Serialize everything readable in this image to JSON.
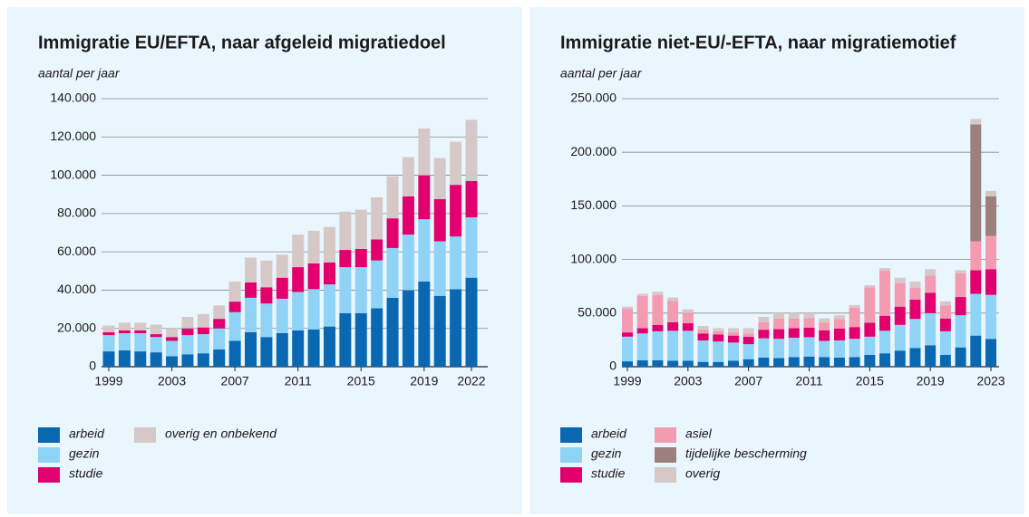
{
  "chart_data": [
    {
      "type": "bar",
      "stacked": true,
      "title": "Immigratie EU/EFTA, naar afgeleid migratiedoel",
      "y_label": "aantal per jaar",
      "x": [
        1999,
        2000,
        2001,
        2002,
        2003,
        2004,
        2005,
        2006,
        2007,
        2008,
        2009,
        2010,
        2011,
        2012,
        2013,
        2014,
        2015,
        2016,
        2017,
        2018,
        2019,
        2020,
        2021,
        2022
      ],
      "xticks": [
        1999,
        2003,
        2007,
        2011,
        2015,
        2019,
        2022
      ],
      "ylim": [
        0,
        140000
      ],
      "yticks": [
        0,
        {
          "value": 20000,
          "label": "20.000"
        },
        {
          "value": 40000,
          "label": "40.000"
        },
        {
          "value": 60000,
          "label": "60.000"
        },
        {
          "value": 80000,
          "label": "80.000"
        },
        {
          "value": 100000,
          "label": "100.000"
        },
        {
          "value": 120000,
          "label": "120.000"
        },
        {
          "value": 140000,
          "label": "140.000"
        }
      ],
      "grid": true,
      "series": [
        {
          "name": "arbeid",
          "color": "#0a68b2",
          "values": [
            8000,
            8500,
            8000,
            7500,
            5500,
            6500,
            7000,
            9000,
            13500,
            18000,
            15500,
            17500,
            19000,
            19500,
            21000,
            28000,
            28000,
            30500,
            36000,
            40000,
            44500,
            37000,
            40500,
            46500
          ]
        },
        {
          "name": "gezin",
          "color": "#8fd3f7",
          "values": [
            8500,
            9000,
            9500,
            8000,
            8000,
            10000,
            10000,
            11000,
            15000,
            18000,
            17500,
            18000,
            20000,
            21000,
            22000,
            24000,
            24000,
            25000,
            26000,
            29000,
            32500,
            28500,
            27500,
            31500
          ]
        },
        {
          "name": "studie",
          "color": "#e2006f",
          "values": [
            1500,
            1500,
            1500,
            1500,
            2000,
            3500,
            3500,
            5000,
            5500,
            8000,
            8500,
            11000,
            13000,
            13500,
            11500,
            9000,
            9500,
            11000,
            15500,
            20000,
            23000,
            22000,
            27000,
            19000
          ]
        },
        {
          "name": "overig en onbekend",
          "color": "#d7c8c8",
          "values": [
            3500,
            4000,
            4000,
            5000,
            4500,
            6000,
            7000,
            7000,
            10500,
            13000,
            14000,
            12000,
            17000,
            17000,
            18500,
            20000,
            20500,
            22000,
            22000,
            20500,
            24500,
            21500,
            22500,
            32000
          ]
        }
      ]
    },
    {
      "type": "bar",
      "stacked": true,
      "title": "Immigratie niet-EU/-EFTA, naar migratiemotief",
      "y_label": "aantal per jaar",
      "x": [
        1999,
        2000,
        2001,
        2002,
        2003,
        2004,
        2005,
        2006,
        2007,
        2008,
        2009,
        2010,
        2011,
        2012,
        2013,
        2014,
        2015,
        2016,
        2017,
        2018,
        2019,
        2020,
        2021,
        2022,
        2023
      ],
      "xticks": [
        1999,
        2003,
        2007,
        2011,
        2015,
        2019,
        2023
      ],
      "ylim": [
        0,
        250000
      ],
      "yticks": [
        0,
        {
          "value": 50000,
          "label": "50.000"
        },
        {
          "value": 100000,
          "label": "100.000"
        },
        {
          "value": 150000,
          "label": "150.000"
        },
        {
          "value": 200000,
          "label": "200.000"
        },
        {
          "value": 250000,
          "label": "250.000"
        }
      ],
      "grid": true,
      "series": [
        {
          "name": "arbeid",
          "color": "#0a68b2",
          "values": [
            5000,
            6000,
            6000,
            5500,
            5500,
            4500,
            4500,
            5500,
            7000,
            8500,
            8000,
            9000,
            9500,
            9000,
            8500,
            9000,
            11000,
            12500,
            15000,
            17500,
            20000,
            11000,
            18000,
            29000,
            26000
          ]
        },
        {
          "name": "gezin",
          "color": "#8fd3f7",
          "values": [
            23000,
            25000,
            27000,
            28000,
            28000,
            20000,
            19000,
            17000,
            14000,
            18000,
            18000,
            18000,
            18000,
            15000,
            16000,
            17000,
            17000,
            21000,
            24000,
            27000,
            30000,
            22000,
            30000,
            39000,
            41000
          ]
        },
        {
          "name": "studie",
          "color": "#e2006f",
          "values": [
            4000,
            5000,
            6000,
            8000,
            7000,
            6500,
            6500,
            6500,
            7000,
            8000,
            9000,
            9000,
            9000,
            10000,
            11000,
            11000,
            13000,
            14000,
            17000,
            18000,
            19000,
            12000,
            17000,
            22000,
            24000
          ]
        },
        {
          "name": "asiel",
          "color": "#f39bb1",
          "values": [
            22000,
            30000,
            28000,
            20000,
            10000,
            3500,
            3000,
            3000,
            3000,
            7000,
            10000,
            9000,
            9000,
            7000,
            9000,
            18000,
            33000,
            42000,
            22000,
            11000,
            16000,
            12000,
            22000,
            27000,
            31000
          ]
        },
        {
          "name": "tijdelijke bescherming",
          "color": "#9b807e",
          "values": [
            0,
            0,
            0,
            0,
            0,
            0,
            0,
            0,
            0,
            0,
            0,
            0,
            0,
            0,
            0,
            0,
            0,
            0,
            0,
            0,
            0,
            0,
            0,
            109000,
            37000
          ]
        },
        {
          "name": "overig",
          "color": "#d7c8c8",
          "values": [
            2000,
            2000,
            3000,
            3000,
            3000,
            3500,
            3000,
            4000,
            5000,
            5000,
            5000,
            5000,
            4500,
            4000,
            3500,
            2500,
            2000,
            2500,
            5000,
            6000,
            6000,
            4000,
            3000,
            5000,
            5000
          ]
        }
      ]
    }
  ]
}
